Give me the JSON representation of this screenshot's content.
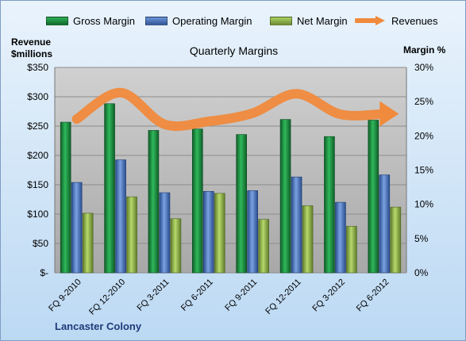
{
  "legend": {
    "gross_margin": "Gross Margin",
    "operating_margin": "Operating Margin",
    "net_margin": "Net Margin",
    "revenues": "Revenues"
  },
  "axes": {
    "left_title_line1": "Revenue",
    "left_title_line2": "$millions",
    "right_title": "Margin %"
  },
  "company": "Lancaster Colony",
  "colors": {
    "gross": "#1a8a3c",
    "operating": "#4a72b8",
    "net": "#8fb04a",
    "revenue": "#f08a3c",
    "plot_bg": "#b8b8b8"
  },
  "chart_data": {
    "type": "bar",
    "title": "Quarterly Margins",
    "categories": [
      "FQ 9-2010",
      "FQ 12-2010",
      "FQ 3-2011",
      "FQ 6-2011",
      "FQ 9-2011",
      "FQ 12-2011",
      "FQ 3-2012",
      "FQ 6-2012"
    ],
    "series": [
      {
        "name": "Gross Margin",
        "axis": "right",
        "values": [
          22.0,
          24.7,
          20.8,
          21.0,
          20.2,
          22.4,
          19.9,
          22.3
        ]
      },
      {
        "name": "Operating Margin",
        "axis": "right",
        "values": [
          13.2,
          16.5,
          11.7,
          11.9,
          12.0,
          14.0,
          10.3,
          14.3
        ]
      },
      {
        "name": "Net Margin",
        "axis": "right",
        "values": [
          8.7,
          11.1,
          7.9,
          11.6,
          7.8,
          9.8,
          6.8,
          9.6
        ]
      },
      {
        "name": "Revenues",
        "type": "line",
        "axis": "left",
        "values": [
          262,
          307,
          253,
          258,
          272,
          305,
          270,
          271
        ]
      }
    ],
    "ylim_left": [
      0,
      350
    ],
    "ylim_right": [
      0,
      30
    ],
    "yticks_left": [
      "$-",
      "$50",
      "$100",
      "$150",
      "$200",
      "$250",
      "$300",
      "$350"
    ],
    "yticks_right": [
      "0%",
      "5%",
      "10%",
      "15%",
      "20%",
      "25%",
      "30%"
    ],
    "legend_position": "top",
    "grid": true
  }
}
